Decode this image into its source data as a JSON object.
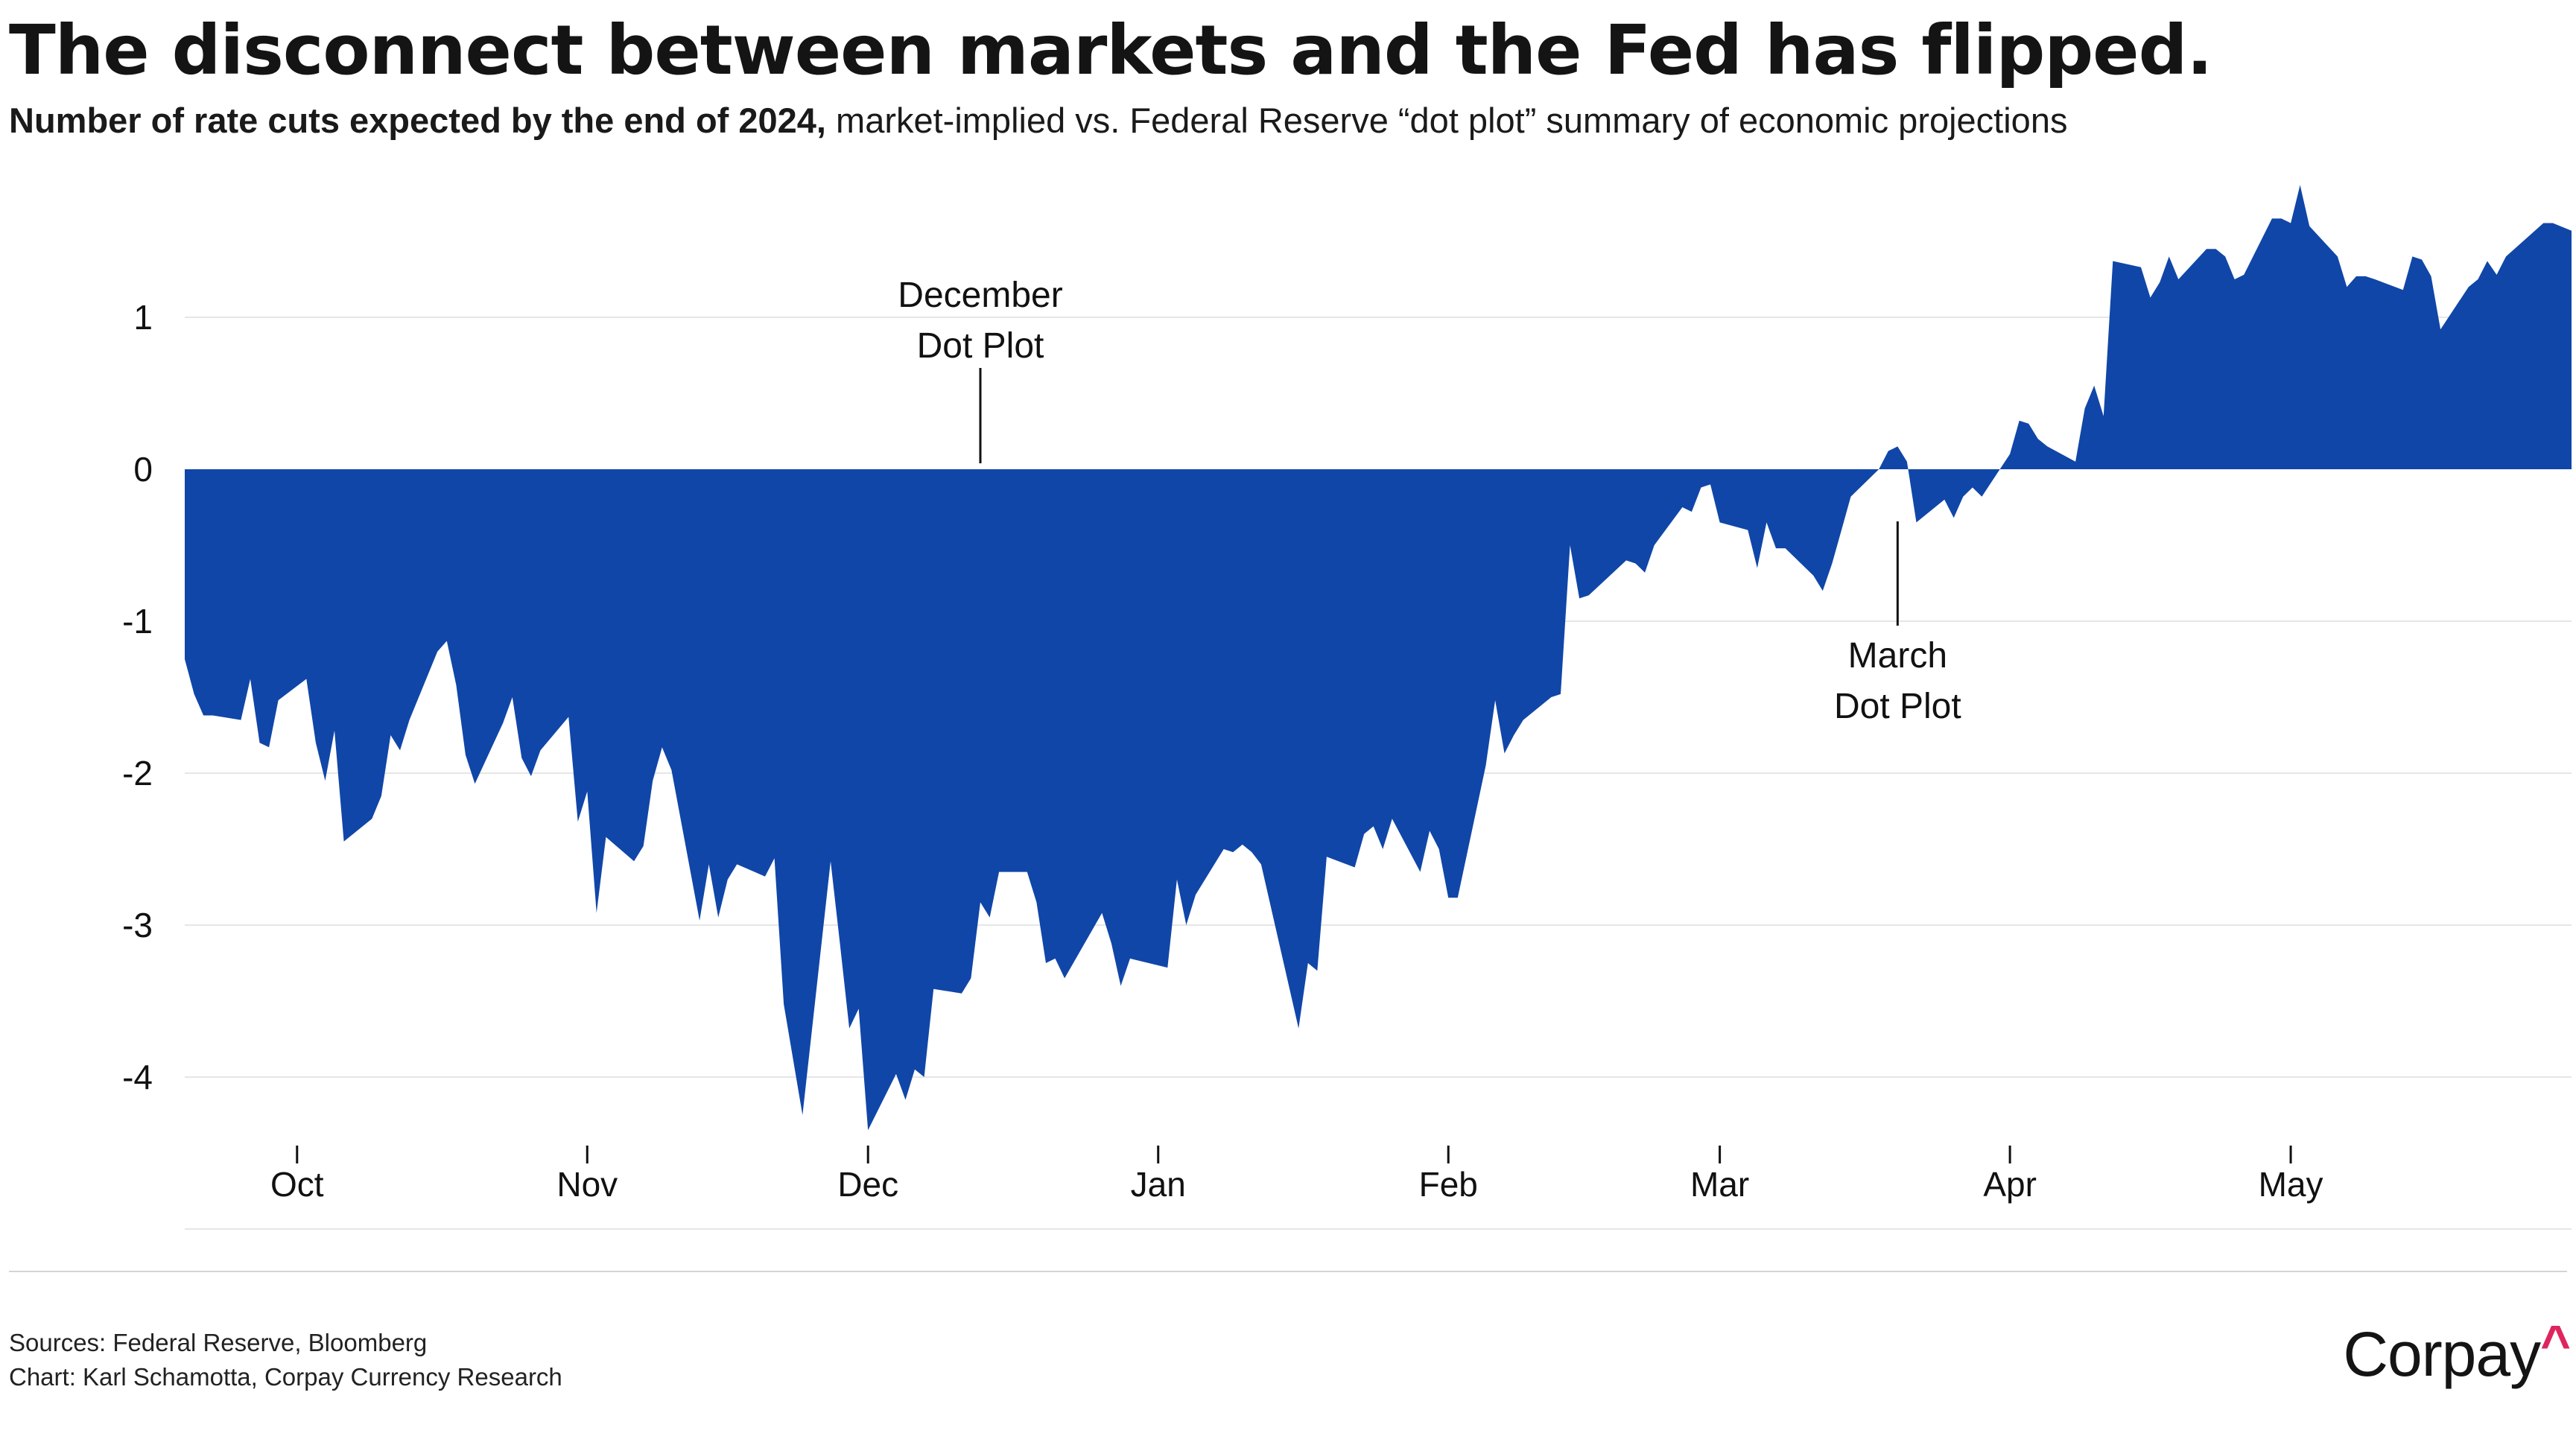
{
  "title": "The disconnect between markets and the Fed has flipped.",
  "subtitle": {
    "bold_part": "Number of rate cuts expected by the end of 2024,",
    "regular_part": " market-implied vs. Federal Reserve “dot plot” summary of economic projections"
  },
  "footer": {
    "sources": "Sources: Federal Reserve, Bloomberg",
    "credit": "Chart: Karl Schamotta, Corpay Currency Research"
  },
  "logo": {
    "text": "Corpay",
    "caret": "^"
  },
  "colors": {
    "area": "#1046a8",
    "grid": "#e6e6e6",
    "brand_accent": "#e0245e"
  },
  "chart_data": {
    "type": "area",
    "title": "The disconnect between markets and the Fed has flipped.",
    "subtitle": "Number of rate cuts expected by the end of 2024, market-implied vs. Federal Reserve “dot plot” summary of economic projections",
    "xlabel": "",
    "ylabel": "",
    "x_range": [
      "2023-09-19",
      "2024-05-31"
    ],
    "ylim": [
      -4.4,
      1.9
    ],
    "grid": true,
    "legend": "none",
    "yticks": [
      {
        "value": 1,
        "label": "1"
      },
      {
        "value": 0,
        "label": "0"
      },
      {
        "value": -1,
        "label": "-1"
      },
      {
        "value": -2,
        "label": "-2"
      },
      {
        "value": -3,
        "label": "-3"
      },
      {
        "value": -4,
        "label": "-4"
      }
    ],
    "xticks": [
      {
        "date": "2023-10-01",
        "label": "Oct"
      },
      {
        "date": "2023-11-01",
        "label": "Nov"
      },
      {
        "date": "2023-12-01",
        "label": "Dec"
      },
      {
        "date": "2024-01-01",
        "label": "Jan"
      },
      {
        "date": "2024-02-01",
        "label": "Feb"
      },
      {
        "date": "2024-03-01",
        "label": "Mar"
      },
      {
        "date": "2024-04-01",
        "label": "Apr"
      },
      {
        "date": "2024-05-01",
        "label": "May"
      }
    ],
    "annotations": [
      {
        "date": "2023-12-13",
        "text_line1": "December",
        "text_line2": "Dot Plot",
        "position": "above"
      },
      {
        "date": "2024-03-20",
        "text_line1": "March",
        "text_line2": "Dot Plot",
        "position": "below"
      }
    ],
    "series": [
      {
        "points": [
          [
            "2023-09-19",
            -1.25
          ],
          [
            "2023-09-20",
            -1.48
          ],
          [
            "2023-09-21",
            -1.62
          ],
          [
            "2023-09-22",
            -1.62
          ],
          [
            "2023-09-25",
            -1.65
          ],
          [
            "2023-09-26",
            -1.38
          ],
          [
            "2023-09-27",
            -1.8
          ],
          [
            "2023-09-28",
            -1.83
          ],
          [
            "2023-09-29",
            -1.52
          ],
          [
            "2023-10-02",
            -1.38
          ],
          [
            "2023-10-03",
            -1.8
          ],
          [
            "2023-10-04",
            -2.05
          ],
          [
            "2023-10-05",
            -1.72
          ],
          [
            "2023-10-06",
            -2.45
          ],
          [
            "2023-10-09",
            -2.3
          ],
          [
            "2023-10-10",
            -2.15
          ],
          [
            "2023-10-11",
            -1.75
          ],
          [
            "2023-10-12",
            -1.85
          ],
          [
            "2023-10-13",
            -1.65
          ],
          [
            "2023-10-16",
            -1.2
          ],
          [
            "2023-10-17",
            -1.13
          ],
          [
            "2023-10-18",
            -1.42
          ],
          [
            "2023-10-19",
            -1.88
          ],
          [
            "2023-10-20",
            -2.07
          ],
          [
            "2023-10-23",
            -1.67
          ],
          [
            "2023-10-24",
            -1.5
          ],
          [
            "2023-10-25",
            -1.9
          ],
          [
            "2023-10-26",
            -2.02
          ],
          [
            "2023-10-27",
            -1.85
          ],
          [
            "2023-10-30",
            -1.63
          ],
          [
            "2023-10-31",
            -2.32
          ],
          [
            "2023-11-01",
            -2.12
          ],
          [
            "2023-11-02",
            -2.92
          ],
          [
            "2023-11-03",
            -2.42
          ],
          [
            "2023-11-06",
            -2.58
          ],
          [
            "2023-11-07",
            -2.48
          ],
          [
            "2023-11-08",
            -2.05
          ],
          [
            "2023-11-09",
            -1.83
          ],
          [
            "2023-11-10",
            -1.98
          ],
          [
            "2023-11-13",
            -2.97
          ],
          [
            "2023-11-14",
            -2.6
          ],
          [
            "2023-11-15",
            -2.95
          ],
          [
            "2023-11-16",
            -2.7
          ],
          [
            "2023-11-17",
            -2.6
          ],
          [
            "2023-11-20",
            -2.68
          ],
          [
            "2023-11-21",
            -2.56
          ],
          [
            "2023-11-22",
            -3.52
          ],
          [
            "2023-11-24",
            -4.25
          ],
          [
            "2023-11-27",
            -2.58
          ],
          [
            "2023-11-28",
            -3.12
          ],
          [
            "2023-11-29",
            -3.68
          ],
          [
            "2023-11-30",
            -3.55
          ],
          [
            "2023-12-01",
            -4.35
          ],
          [
            "2023-12-04",
            -3.98
          ],
          [
            "2023-12-05",
            -4.15
          ],
          [
            "2023-12-06",
            -3.95
          ],
          [
            "2023-12-07",
            -4.0
          ],
          [
            "2023-12-08",
            -3.42
          ],
          [
            "2023-12-11",
            -3.45
          ],
          [
            "2023-12-12",
            -3.35
          ],
          [
            "2023-12-13",
            -2.85
          ],
          [
            "2023-12-14",
            -2.95
          ],
          [
            "2023-12-15",
            -2.65
          ],
          [
            "2023-12-18",
            -2.65
          ],
          [
            "2023-12-19",
            -2.85
          ],
          [
            "2023-12-20",
            -3.25
          ],
          [
            "2023-12-21",
            -3.22
          ],
          [
            "2023-12-22",
            -3.35
          ],
          [
            "2023-12-26",
            -2.92
          ],
          [
            "2023-12-27",
            -3.12
          ],
          [
            "2023-12-28",
            -3.4
          ],
          [
            "2023-12-29",
            -3.22
          ],
          [
            "2024-01-02",
            -3.28
          ],
          [
            "2024-01-03",
            -2.7
          ],
          [
            "2024-01-04",
            -3.0
          ],
          [
            "2024-01-05",
            -2.8
          ],
          [
            "2024-01-08",
            -2.5
          ],
          [
            "2024-01-09",
            -2.52
          ],
          [
            "2024-01-10",
            -2.47
          ],
          [
            "2024-01-11",
            -2.52
          ],
          [
            "2024-01-12",
            -2.6
          ],
          [
            "2024-01-16",
            -3.68
          ],
          [
            "2024-01-17",
            -3.25
          ],
          [
            "2024-01-18",
            -3.3
          ],
          [
            "2024-01-19",
            -2.55
          ],
          [
            "2024-01-22",
            -2.62
          ],
          [
            "2024-01-23",
            -2.4
          ],
          [
            "2024-01-24",
            -2.35
          ],
          [
            "2024-01-25",
            -2.5
          ],
          [
            "2024-01-26",
            -2.3
          ],
          [
            "2024-01-29",
            -2.65
          ],
          [
            "2024-01-30",
            -2.38
          ],
          [
            "2024-01-31",
            -2.5
          ],
          [
            "2024-02-01",
            -2.82
          ],
          [
            "2024-02-02",
            -2.82
          ],
          [
            "2024-02-05",
            -1.95
          ],
          [
            "2024-02-06",
            -1.52
          ],
          [
            "2024-02-07",
            -1.87
          ],
          [
            "2024-02-08",
            -1.75
          ],
          [
            "2024-02-09",
            -1.65
          ],
          [
            "2024-02-12",
            -1.5
          ],
          [
            "2024-02-13",
            -1.48
          ],
          [
            "2024-02-14",
            -0.5
          ],
          [
            "2024-02-15",
            -0.85
          ],
          [
            "2024-02-16",
            -0.83
          ],
          [
            "2024-02-20",
            -0.6
          ],
          [
            "2024-02-21",
            -0.62
          ],
          [
            "2024-02-22",
            -0.68
          ],
          [
            "2024-02-23",
            -0.5
          ],
          [
            "2024-02-26",
            -0.25
          ],
          [
            "2024-02-27",
            -0.28
          ],
          [
            "2024-02-28",
            -0.12
          ],
          [
            "2024-02-29",
            -0.1
          ],
          [
            "2024-03-01",
            -0.35
          ],
          [
            "2024-03-04",
            -0.4
          ],
          [
            "2024-03-05",
            -0.65
          ],
          [
            "2024-03-06",
            -0.35
          ],
          [
            "2024-03-07",
            -0.52
          ],
          [
            "2024-03-08",
            -0.52
          ],
          [
            "2024-03-11",
            -0.7
          ],
          [
            "2024-03-12",
            -0.8
          ],
          [
            "2024-03-13",
            -0.62
          ],
          [
            "2024-03-14",
            -0.4
          ],
          [
            "2024-03-15",
            -0.18
          ],
          [
            "2024-03-18",
            0.0
          ],
          [
            "2024-03-19",
            0.12
          ],
          [
            "2024-03-20",
            0.15
          ],
          [
            "2024-03-21",
            0.05
          ],
          [
            "2024-03-22",
            -0.35
          ],
          [
            "2024-03-25",
            -0.2
          ],
          [
            "2024-03-26",
            -0.32
          ],
          [
            "2024-03-27",
            -0.18
          ],
          [
            "2024-03-28",
            -0.12
          ],
          [
            "2024-03-29",
            -0.18
          ],
          [
            "2024-04-01",
            0.1
          ],
          [
            "2024-04-02",
            0.32
          ],
          [
            "2024-04-03",
            0.3
          ],
          [
            "2024-04-04",
            0.2
          ],
          [
            "2024-04-05",
            0.15
          ],
          [
            "2024-04-08",
            0.05
          ],
          [
            "2024-04-09",
            0.4
          ],
          [
            "2024-04-10",
            0.55
          ],
          [
            "2024-04-11",
            0.35
          ],
          [
            "2024-04-12",
            1.37
          ],
          [
            "2024-04-15",
            1.33
          ],
          [
            "2024-04-16",
            1.13
          ],
          [
            "2024-04-17",
            1.23
          ],
          [
            "2024-04-18",
            1.4
          ],
          [
            "2024-04-19",
            1.25
          ],
          [
            "2024-04-22",
            1.45
          ],
          [
            "2024-04-23",
            1.45
          ],
          [
            "2024-04-24",
            1.4
          ],
          [
            "2024-04-25",
            1.25
          ],
          [
            "2024-04-26",
            1.28
          ],
          [
            "2024-04-29",
            1.65
          ],
          [
            "2024-04-30",
            1.65
          ],
          [
            "2024-05-01",
            1.62
          ],
          [
            "2024-05-02",
            1.87
          ],
          [
            "2024-05-03",
            1.6
          ],
          [
            "2024-05-06",
            1.4
          ],
          [
            "2024-05-07",
            1.2
          ],
          [
            "2024-05-08",
            1.27
          ],
          [
            "2024-05-09",
            1.27
          ],
          [
            "2024-05-10",
            1.25
          ],
          [
            "2024-05-13",
            1.18
          ],
          [
            "2024-05-14",
            1.4
          ],
          [
            "2024-05-15",
            1.38
          ],
          [
            "2024-05-16",
            1.27
          ],
          [
            "2024-05-17",
            0.92
          ],
          [
            "2024-05-20",
            1.2
          ],
          [
            "2024-05-21",
            1.25
          ],
          [
            "2024-05-22",
            1.37
          ],
          [
            "2024-05-23",
            1.28
          ],
          [
            "2024-05-24",
            1.4
          ],
          [
            "2024-05-28",
            1.62
          ],
          [
            "2024-05-29",
            1.62
          ],
          [
            "2024-05-31",
            1.57
          ]
        ]
      }
    ]
  }
}
